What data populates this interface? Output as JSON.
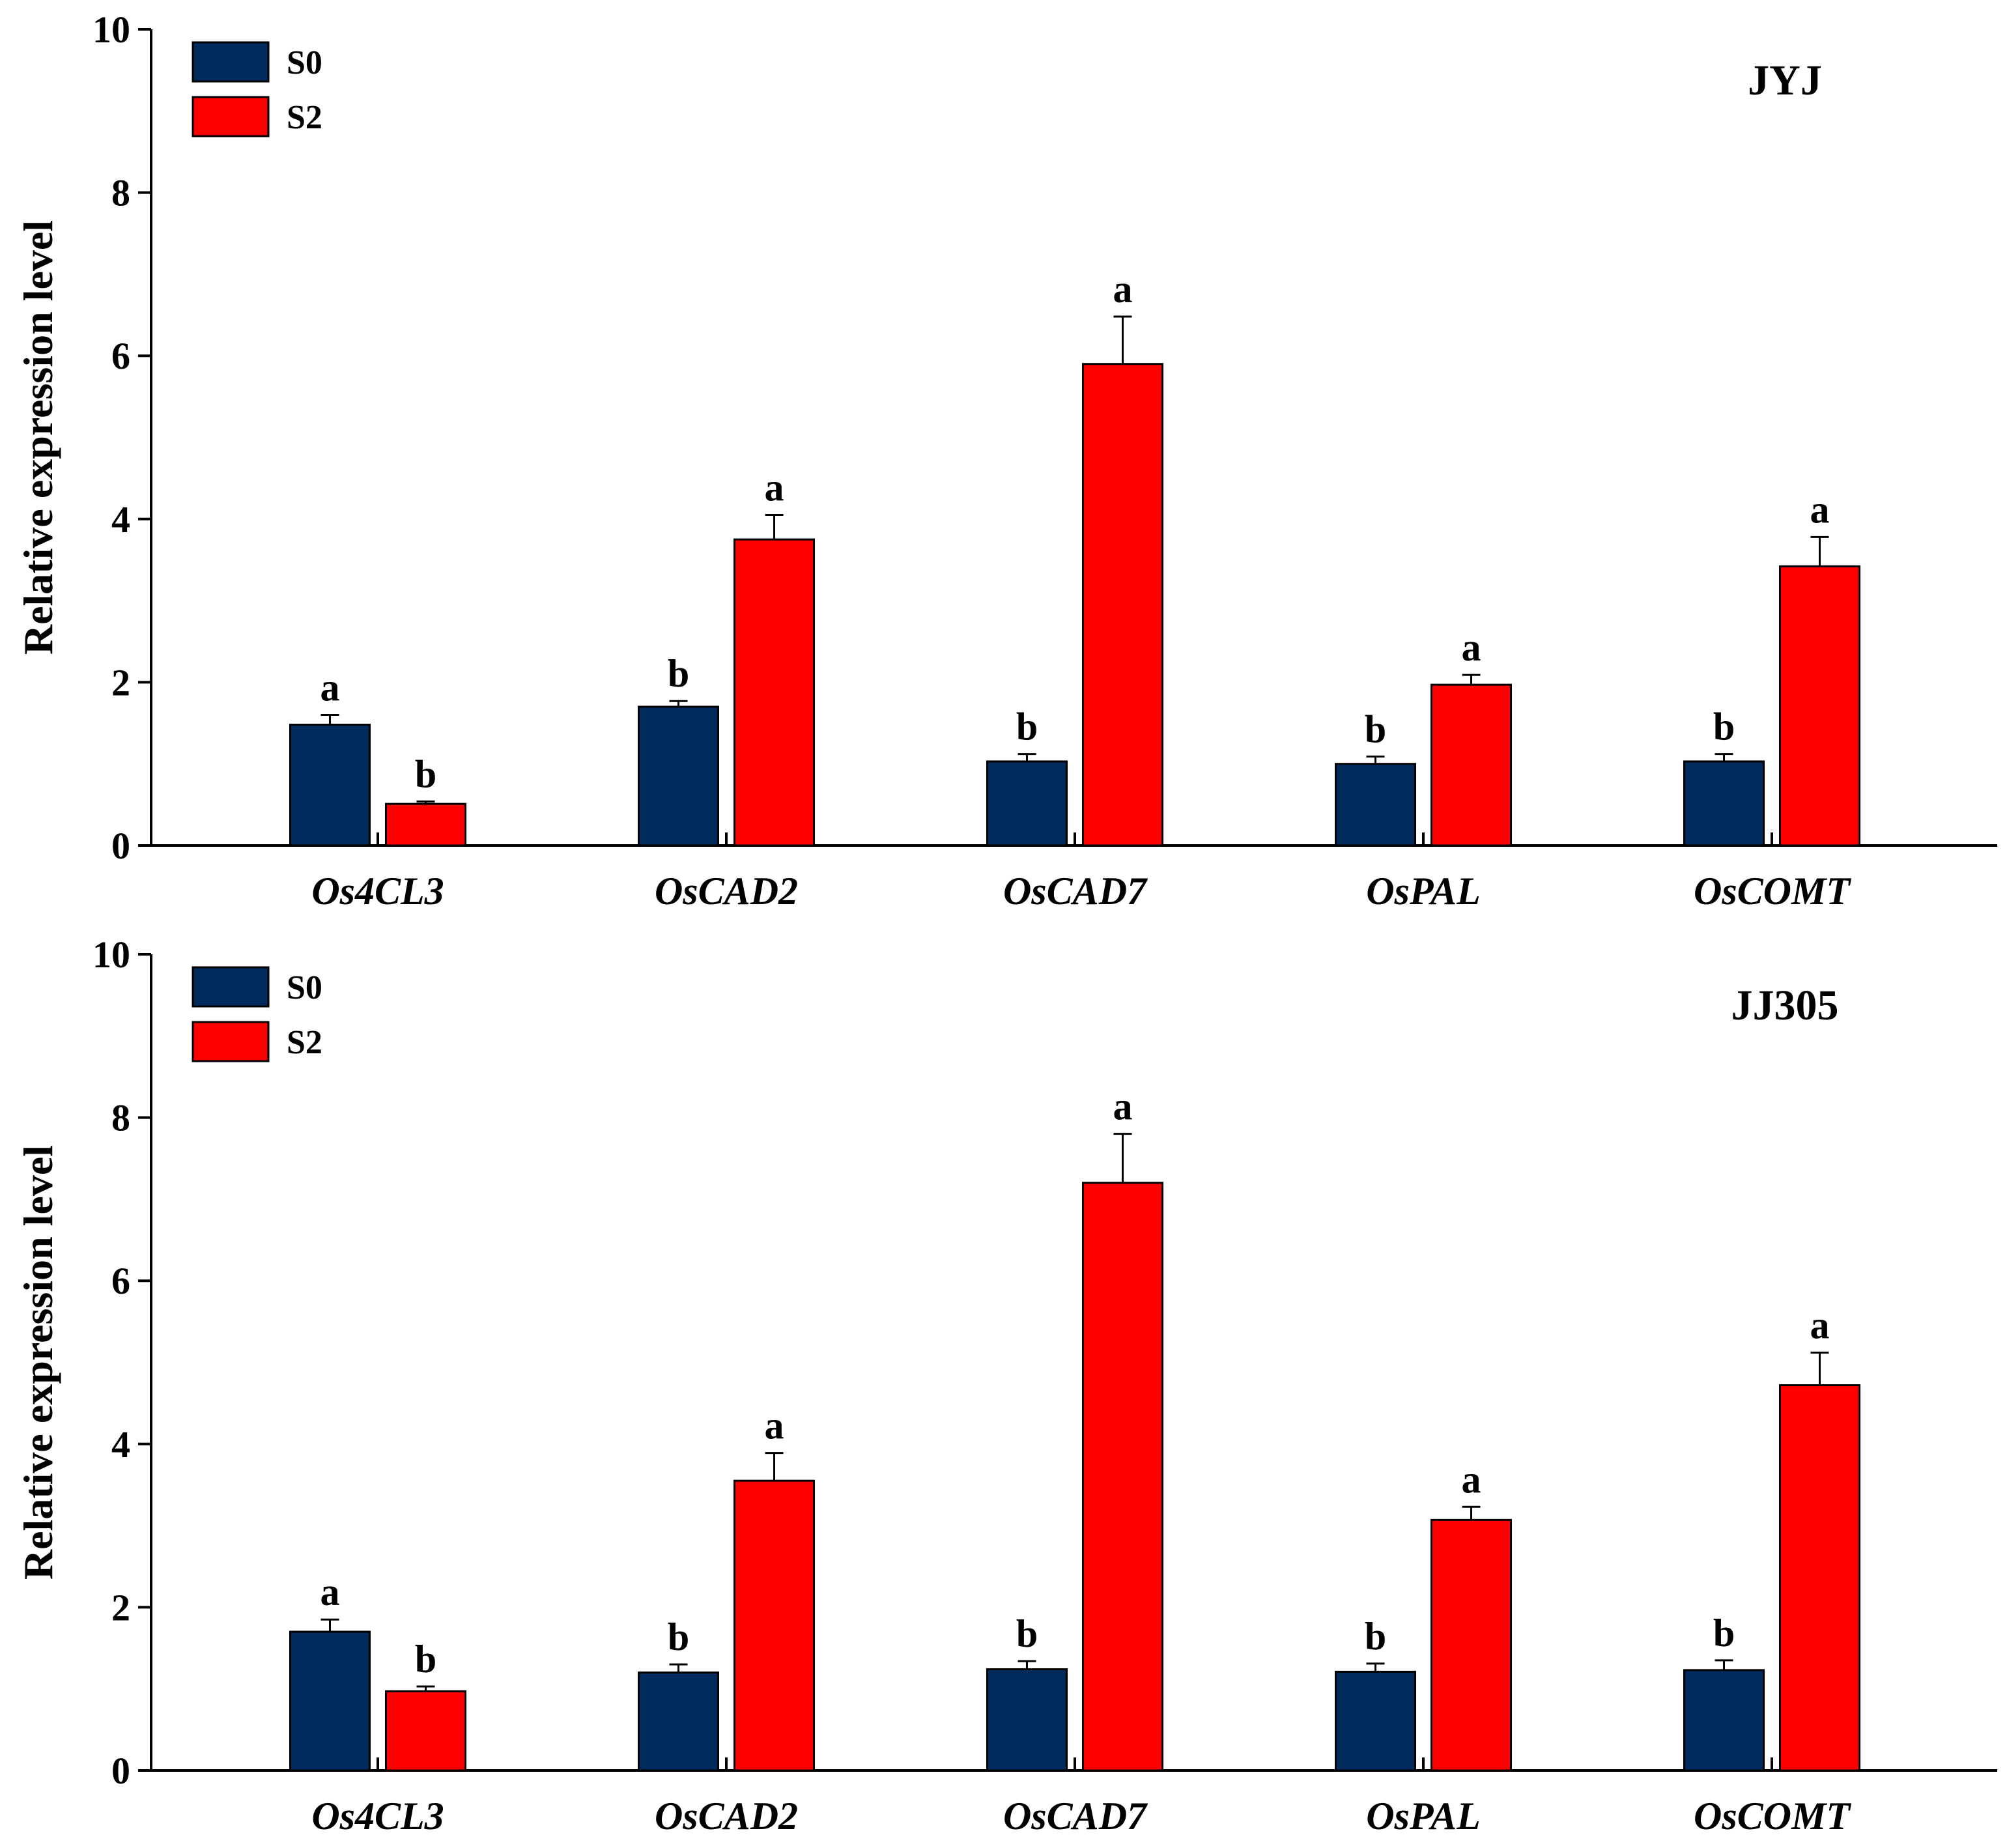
{
  "chart_data": [
    {
      "type": "bar",
      "title": "JYJ",
      "xlabel": "",
      "ylabel": "Relative expression level",
      "ylim": [
        0,
        10
      ],
      "yticks": [
        0,
        2,
        4,
        6,
        8,
        10
      ],
      "legend_position": "top-left",
      "categories": [
        "Os4CL3",
        "OsCAD2",
        "OsCAD7",
        "OsPAL",
        "OsCOMT"
      ],
      "series": [
        {
          "name": "S0",
          "color": "#002B5C",
          "values": [
            1.48,
            1.7,
            1.03,
            1.0,
            1.03
          ],
          "errors": [
            0.12,
            0.07,
            0.09,
            0.09,
            0.09
          ],
          "letters": [
            "a",
            "b",
            "b",
            "b",
            "b"
          ]
        },
        {
          "name": "S2",
          "color": "#FF0000",
          "values": [
            0.51,
            3.75,
            5.9,
            1.97,
            3.42
          ],
          "errors": [
            0.03,
            0.3,
            0.58,
            0.12,
            0.36
          ],
          "letters": [
            "b",
            "a",
            "a",
            "a",
            "a"
          ]
        }
      ]
    },
    {
      "type": "bar",
      "title": "JJ305",
      "xlabel": "",
      "ylabel": "Relative expression level",
      "ylim": [
        0,
        10
      ],
      "yticks": [
        0,
        2,
        4,
        6,
        8,
        10
      ],
      "legend_position": "top-left",
      "categories": [
        "Os4CL3",
        "OsCAD2",
        "OsCAD7",
        "OsPAL",
        "OsCOMT"
      ],
      "series": [
        {
          "name": "S0",
          "color": "#002B5C",
          "values": [
            1.7,
            1.2,
            1.24,
            1.21,
            1.23
          ],
          "errors": [
            0.15,
            0.1,
            0.1,
            0.1,
            0.12
          ],
          "letters": [
            "a",
            "b",
            "b",
            "b",
            "b"
          ]
        },
        {
          "name": "S2",
          "color": "#FF0000",
          "values": [
            0.97,
            3.55,
            7.2,
            3.07,
            4.72
          ],
          "errors": [
            0.06,
            0.34,
            0.6,
            0.16,
            0.4
          ],
          "letters": [
            "b",
            "a",
            "a",
            "a",
            "a"
          ]
        }
      ]
    }
  ]
}
